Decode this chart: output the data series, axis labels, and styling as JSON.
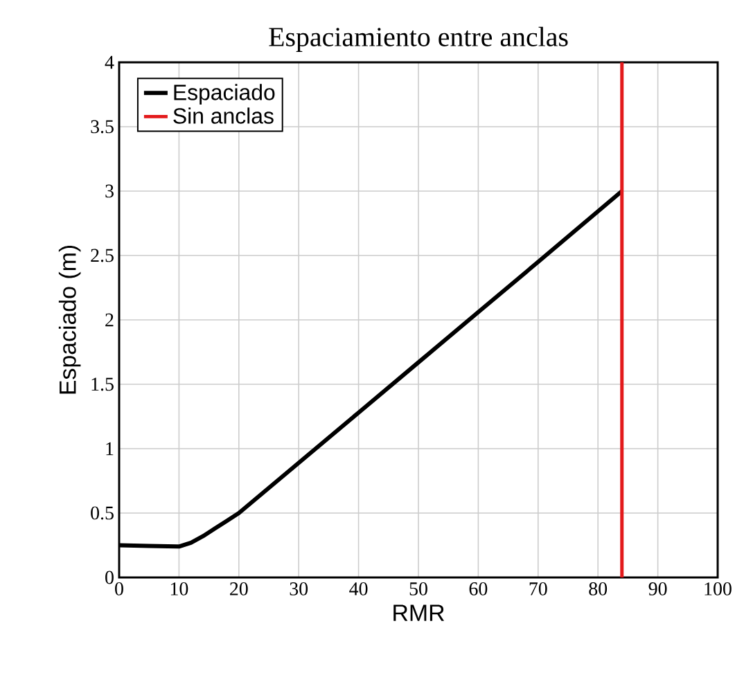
{
  "chart_data": {
    "type": "line",
    "title": "Espaciamiento entre anclas",
    "xlabel": "RMR",
    "ylabel": "Espaciado (m)",
    "xlim": [
      0,
      100
    ],
    "ylim": [
      0,
      4
    ],
    "xticks": [
      0,
      10,
      20,
      30,
      40,
      50,
      60,
      70,
      80,
      90,
      100
    ],
    "yticks": [
      0,
      0.5,
      1,
      1.5,
      2,
      2.5,
      3,
      3.5,
      4
    ],
    "grid": true,
    "legend": "top left",
    "line_style": "solid",
    "marker": "none",
    "series": [
      {
        "name": "Espaciado",
        "color": "#000000",
        "x": [
          0,
          5,
          10,
          12,
          14,
          16,
          18,
          20,
          30,
          40,
          50,
          60,
          70,
          84
        ],
        "values": [
          0.25,
          0.245,
          0.24,
          0.27,
          0.32,
          0.38,
          0.44,
          0.5,
          0.89,
          1.28,
          1.67,
          2.06,
          2.45,
          3.0
        ]
      },
      {
        "name": "Sin anclas",
        "color": "#e31a1c",
        "x": [
          84,
          84
        ],
        "values": [
          0,
          4
        ]
      }
    ]
  }
}
